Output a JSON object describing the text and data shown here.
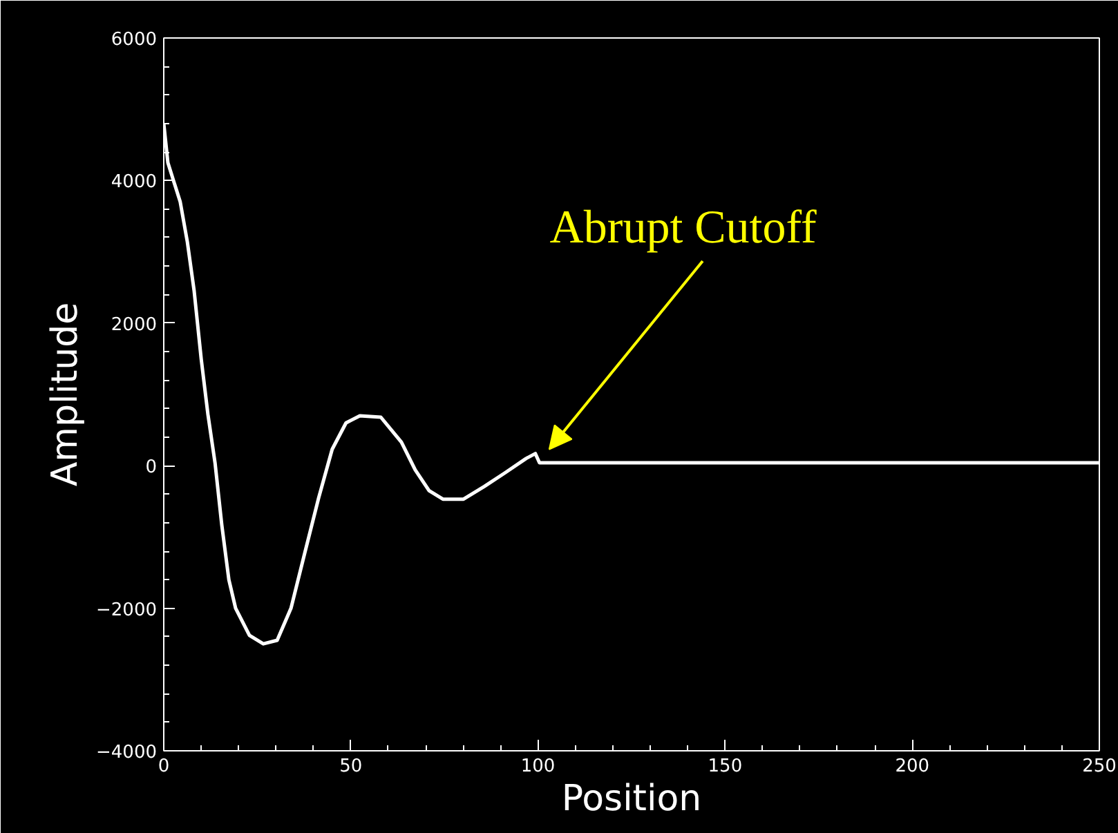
{
  "chart_data": {
    "type": "line",
    "xlabel": "Position",
    "ylabel": "Amplitude",
    "x": [
      0,
      0.4,
      1.1,
      2.6,
      4.4,
      6.3,
      8.1,
      10,
      11.8,
      13.7,
      15.5,
      17.4,
      19.2,
      22.9,
      26.6,
      30.3,
      34,
      37.7,
      41.4,
      45,
      48.7,
      52.4,
      58,
      63.5,
      67.2,
      70.9,
      74.6,
      80.1,
      85.7,
      91.2,
      96.8,
      99.3,
      100.4,
      250
    ],
    "series": [
      {
        "color": "#ffffff",
        "values": [
          4800,
          4600,
          4250,
          4000,
          3700,
          3140,
          2460,
          1500,
          720,
          40,
          -830,
          -1600,
          -2000,
          -2380,
          -2500,
          -2450,
          -2000,
          -1220,
          -450,
          230,
          600,
          700,
          680,
          330,
          -60,
          -350,
          -470,
          -470,
          -290,
          -100,
          100,
          170,
          40,
          40
        ]
      }
    ],
    "xlim": [
      0,
      250
    ],
    "xticks": [
      0,
      50,
      100,
      150,
      200,
      250
    ],
    "ylim": [
      -4000,
      6000
    ],
    "yticks": [
      -4000,
      -2000,
      0,
      2000,
      4000,
      6000
    ],
    "annotations": [
      {
        "text": "Abrupt Cutoff",
        "x": 100,
        "y": 170
      }
    ],
    "grid": false,
    "line_style": "solid",
    "marker": "none"
  }
}
